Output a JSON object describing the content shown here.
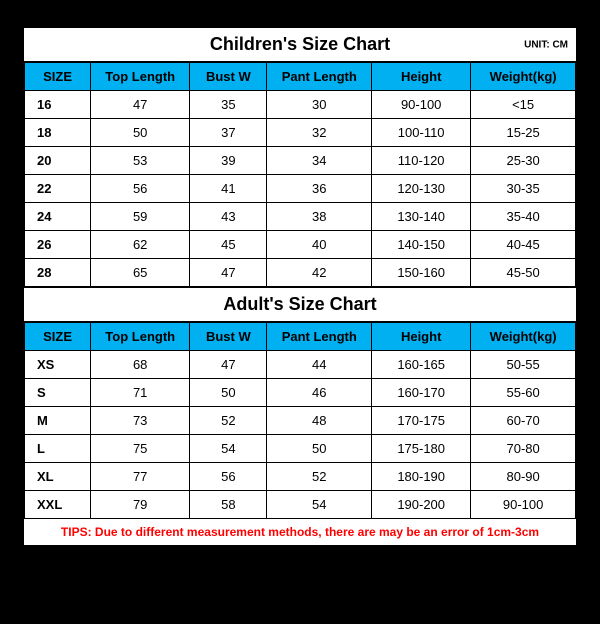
{
  "unit_label": "UNIT: CM",
  "children": {
    "title": "Children's Size Chart",
    "columns": [
      "SIZE",
      "Top Length",
      "Bust W",
      "Pant Length",
      "Height",
      "Weight(kg)"
    ],
    "rows": [
      [
        "16",
        "47",
        "35",
        "30",
        "90-100",
        "<15"
      ],
      [
        "18",
        "50",
        "37",
        "32",
        "100-110",
        "15-25"
      ],
      [
        "20",
        "53",
        "39",
        "34",
        "110-120",
        "25-30"
      ],
      [
        "22",
        "56",
        "41",
        "36",
        "120-130",
        "30-35"
      ],
      [
        "24",
        "59",
        "43",
        "38",
        "130-140",
        "35-40"
      ],
      [
        "26",
        "62",
        "45",
        "40",
        "140-150",
        "40-45"
      ],
      [
        "28",
        "65",
        "47",
        "42",
        "150-160",
        "45-50"
      ]
    ]
  },
  "adult": {
    "title": "Adult's Size Chart",
    "columns": [
      "SIZE",
      "Top Length",
      "Bust W",
      "Pant Length",
      "Height",
      "Weight(kg)"
    ],
    "rows": [
      [
        "XS",
        "68",
        "47",
        "44",
        "160-165",
        "50-55"
      ],
      [
        "S",
        "71",
        "50",
        "46",
        "160-170",
        "55-60"
      ],
      [
        "M",
        "73",
        "52",
        "48",
        "170-175",
        "60-70"
      ],
      [
        "L",
        "75",
        "54",
        "50",
        "175-180",
        "70-80"
      ],
      [
        "XL",
        "77",
        "56",
        "52",
        "180-190",
        "80-90"
      ],
      [
        "XXL",
        "79",
        "58",
        "54",
        "190-200",
        "90-100"
      ]
    ]
  },
  "tips": "TIPS: Due to different measurement methods, there are may be an error of 1cm-3cm"
}
